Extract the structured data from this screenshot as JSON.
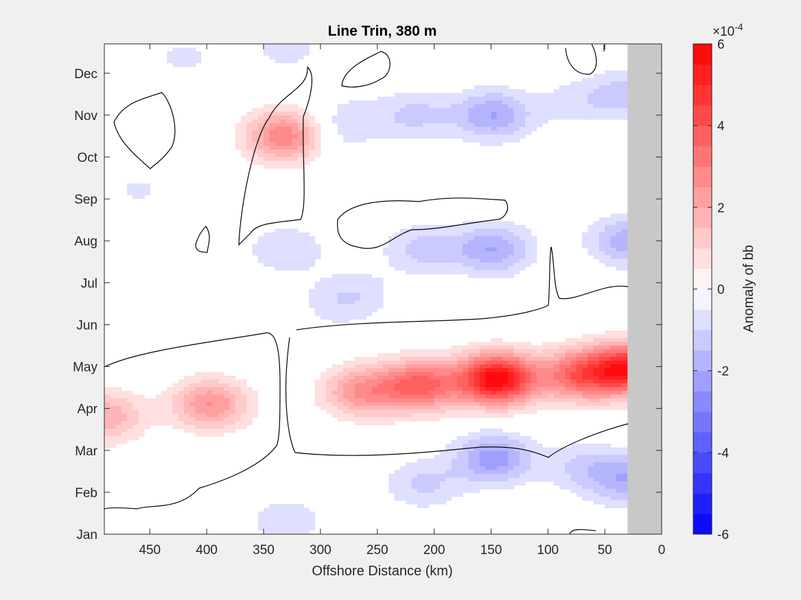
{
  "chart_data": {
    "type": "heatmap",
    "subtype": "filled-contour",
    "title": "Line Trin, 380 m",
    "xlabel": "Offshore Distance (km)",
    "ylabel": "",
    "x_reversed": true,
    "xlim": [
      0,
      490
    ],
    "xticks": [
      450,
      400,
      350,
      300,
      250,
      200,
      150,
      100,
      50,
      0
    ],
    "yticks": [
      "Jan",
      "Feb",
      "Mar",
      "Apr",
      "May",
      "Jun",
      "Jul",
      "Aug",
      "Sep",
      "Oct",
      "Nov",
      "Dec"
    ],
    "ylim": [
      1,
      12.7
    ],
    "colorbar": {
      "label": "Anomaly of bb",
      "exponent_label": "×10",
      "exponent_power": "-4",
      "range": [
        -6,
        6
      ],
      "ticks": [
        6,
        4,
        2,
        0,
        -2,
        -4,
        -6
      ],
      "levels": 24,
      "min_color": "#0000ff",
      "max_color": "#ff0000",
      "mid_color": "#ffffff"
    },
    "land_mask": {
      "x_range": [
        0,
        30
      ],
      "color": "#c8c8c8"
    },
    "features": [
      {
        "x": 145,
        "month": 4.7,
        "value": 6.0
      },
      {
        "x": 72,
        "month": 4.8,
        "value": 3.5
      },
      {
        "x": 28,
        "month": 4.95,
        "value": 5.0
      },
      {
        "x": 212,
        "month": 4.55,
        "value": 3.6
      },
      {
        "x": 263,
        "month": 4.4,
        "value": 2.5
      },
      {
        "x": 397,
        "month": 4.1,
        "value": 2.5
      },
      {
        "x": 490,
        "month": 3.8,
        "value": 2.0
      },
      {
        "x": 330,
        "month": 10.5,
        "value": 3.2
      },
      {
        "x": 148,
        "month": 2.8,
        "value": -2.3
      },
      {
        "x": 148,
        "month": 7.8,
        "value": -2.0
      },
      {
        "x": 148,
        "month": 11.0,
        "value": -2.0
      },
      {
        "x": 210,
        "month": 7.8,
        "value": -1.2
      },
      {
        "x": 215,
        "month": 11.0,
        "value": -1.1
      },
      {
        "x": 70,
        "month": 2.6,
        "value": -1.0
      },
      {
        "x": 30,
        "month": 8.0,
        "value": -1.8
      },
      {
        "x": 30,
        "month": 2.3,
        "value": -1.8
      },
      {
        "x": 30,
        "month": 11.5,
        "value": -1.2
      },
      {
        "x": 270,
        "month": 10.9,
        "value": -0.7
      },
      {
        "x": 330,
        "month": 7.8,
        "value": -1.0
      },
      {
        "x": 330,
        "month": 1.3,
        "value": -0.9
      },
      {
        "x": 285,
        "month": 6.5,
        "value": -0.7
      },
      {
        "x": 300,
        "month": 10.5,
        "value": -0.7
      },
      {
        "x": 265,
        "month": 6.8,
        "value": -0.55
      },
      {
        "x": 330,
        "month": 12.6,
        "value": -0.7
      },
      {
        "x": 420,
        "month": 12.4,
        "value": -0.6
      },
      {
        "x": 210,
        "month": 2.2,
        "value": -1.1
      },
      {
        "x": 75,
        "month": 11.3,
        "value": -0.7
      },
      {
        "x": 460,
        "month": 9.2,
        "value": -0.55
      }
    ]
  }
}
